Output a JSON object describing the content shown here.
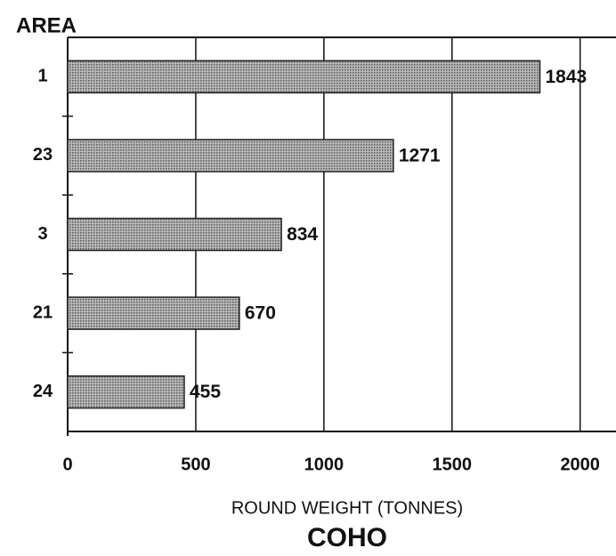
{
  "chart_data": {
    "type": "bar",
    "orientation": "horizontal",
    "title": "COHO",
    "x_label": "ROUND WEIGHT (TONNES)",
    "y_label": "AREA",
    "categories": [
      "1",
      "23",
      "3",
      "21",
      "24"
    ],
    "values": [
      1843,
      1271,
      834,
      670,
      455
    ],
    "color": "#8c8c8c",
    "xlim": [
      0,
      2140
    ],
    "xticks": [
      0,
      500,
      1000,
      1500,
      2000
    ],
    "grid": true
  }
}
